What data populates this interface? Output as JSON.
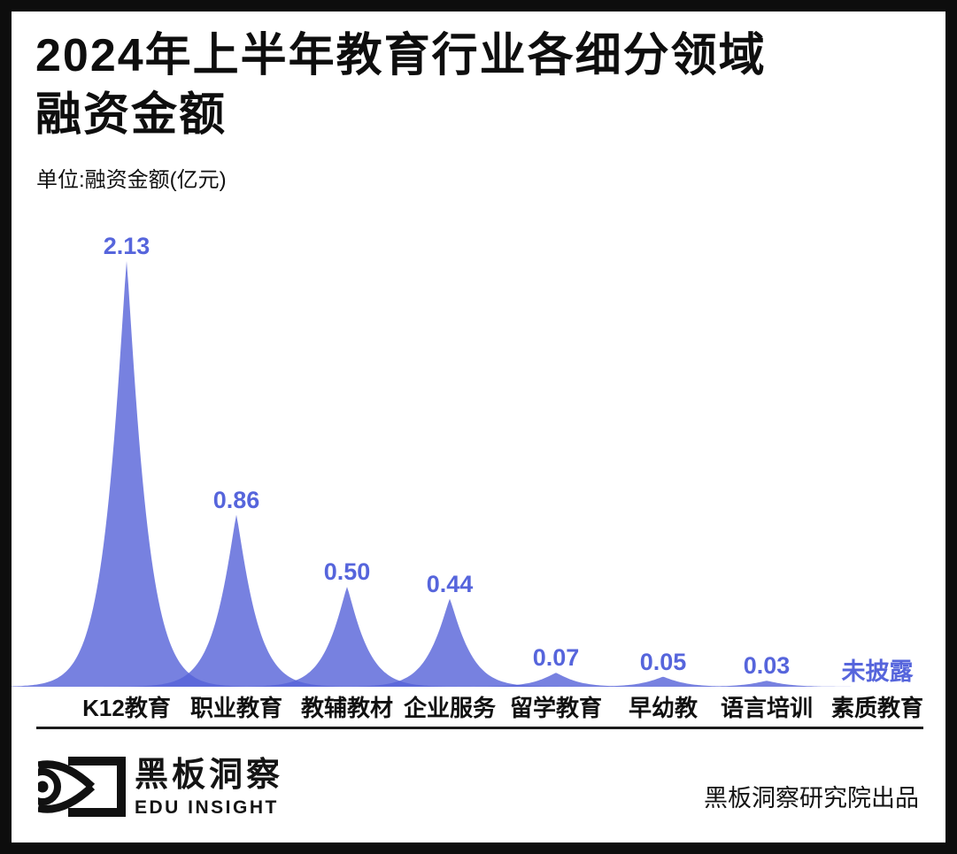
{
  "header": {
    "title_line1": "2024年上半年教育行业各细分领域",
    "title_line2": "融资金额",
    "unit_label": "单位:融资金额(亿元)"
  },
  "chart_data": {
    "type": "area",
    "title": "2024年上半年教育行业各细分领域融资金额",
    "xlabel": "",
    "ylabel": "融资金额(亿元)",
    "ylim": [
      0,
      2.3
    ],
    "grid": false,
    "legend": false,
    "categories": [
      "K12教育",
      "职业教育",
      "教辅教材",
      "企业服务",
      "留学教育",
      "早幼教",
      "语言培训",
      "素质教育"
    ],
    "values": [
      2.13,
      0.86,
      0.5,
      0.44,
      0.07,
      0.05,
      0.03,
      null
    ],
    "value_labels": [
      "2.13",
      "0.86",
      "0.50",
      "0.44",
      "0.07",
      "0.05",
      "0.03",
      "未披露"
    ],
    "undisclosed_note": "未披露",
    "colors": {
      "area_base": "#5562D8",
      "area_opacity": 0.8,
      "area_displayed": "#7780E0",
      "value_label": "#5665DC"
    }
  },
  "footer": {
    "brand_cn": "黑板洞察",
    "brand_en": "EDU INSIGHT",
    "credit": "黑板洞察研究院出品"
  }
}
